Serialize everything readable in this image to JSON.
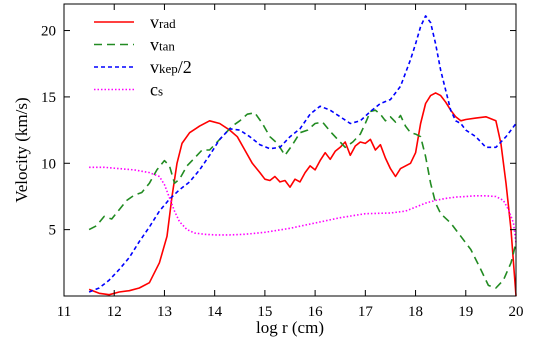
{
  "chart_data": {
    "type": "line",
    "xlabel": "log r (cm)",
    "ylabel": "Velocity (km/s)",
    "xlim": [
      11,
      20
    ],
    "ylim": [
      0,
      22
    ],
    "x_ticks": [
      11,
      12,
      13,
      14,
      15,
      16,
      17,
      18,
      19,
      20
    ],
    "y_ticks": [
      5,
      10,
      15,
      20
    ],
    "grid": false,
    "legend_position": "top-left",
    "series": [
      {
        "name": "v_rad",
        "legend": {
          "base": "v",
          "sub": "rad",
          "suffix": ""
        },
        "color": "#ff0000",
        "dash": "solid",
        "x": [
          11.5,
          11.7,
          11.9,
          12.1,
          12.3,
          12.5,
          12.7,
          12.9,
          13.05,
          13.15,
          13.25,
          13.35,
          13.5,
          13.7,
          13.9,
          14.1,
          14.3,
          14.45,
          14.6,
          14.75,
          14.9,
          15.0,
          15.1,
          15.2,
          15.3,
          15.4,
          15.5,
          15.6,
          15.7,
          15.8,
          15.9,
          16.0,
          16.1,
          16.2,
          16.3,
          16.4,
          16.5,
          16.6,
          16.7,
          16.8,
          16.9,
          17.0,
          17.1,
          17.2,
          17.3,
          17.4,
          17.5,
          17.6,
          17.7,
          17.8,
          17.9,
          18.0,
          18.1,
          18.2,
          18.3,
          18.4,
          18.5,
          18.6,
          18.7,
          18.8,
          18.9,
          19.0,
          19.2,
          19.4,
          19.6,
          19.7,
          19.8,
          19.9,
          20.0
        ],
        "y": [
          0.5,
          0.2,
          0.1,
          0.3,
          0.4,
          0.6,
          1.0,
          2.5,
          4.5,
          7.5,
          10.0,
          11.5,
          12.3,
          12.8,
          13.2,
          13.0,
          12.5,
          12.0,
          11.0,
          10.0,
          9.3,
          8.8,
          8.7,
          9.0,
          8.6,
          8.7,
          8.2,
          8.8,
          8.6,
          9.3,
          9.8,
          9.5,
          10.2,
          10.8,
          10.3,
          10.9,
          11.2,
          11.6,
          10.6,
          11.3,
          11.6,
          11.5,
          11.8,
          11.0,
          11.4,
          10.4,
          9.6,
          9.0,
          9.6,
          9.8,
          10.0,
          10.8,
          13.0,
          14.5,
          15.1,
          15.3,
          15.1,
          14.6,
          14.0,
          13.5,
          13.2,
          13.3,
          13.4,
          13.5,
          13.2,
          11.5,
          8.5,
          5.0,
          0.0
        ]
      },
      {
        "name": "v_tan",
        "legend": {
          "base": "v",
          "sub": "tan",
          "suffix": ""
        },
        "color": "#228b22",
        "dash": "8,5",
        "x": [
          11.5,
          11.65,
          11.8,
          11.95,
          12.1,
          12.25,
          12.4,
          12.55,
          12.7,
          12.85,
          13.0,
          13.1,
          13.2,
          13.3,
          13.45,
          13.6,
          13.75,
          13.9,
          14.05,
          14.2,
          14.35,
          14.5,
          14.65,
          14.8,
          14.95,
          15.1,
          15.25,
          15.4,
          15.55,
          15.7,
          15.85,
          16.0,
          16.15,
          16.3,
          16.45,
          16.6,
          16.75,
          16.9,
          17.0,
          17.1,
          17.2,
          17.3,
          17.4,
          17.5,
          17.6,
          17.7,
          17.8,
          17.9,
          18.0,
          18.1,
          18.2,
          18.3,
          18.4,
          18.5,
          18.7,
          18.9,
          19.1,
          19.3,
          19.45,
          19.6,
          19.75,
          19.9,
          20.0
        ],
        "y": [
          5.0,
          5.3,
          6.0,
          5.8,
          6.5,
          7.2,
          7.6,
          7.8,
          8.5,
          9.5,
          10.2,
          9.8,
          8.5,
          8.8,
          9.8,
          10.4,
          11.0,
          11.0,
          11.6,
          12.2,
          12.8,
          13.2,
          13.7,
          13.8,
          13.0,
          12.0,
          11.5,
          10.6,
          11.4,
          12.3,
          12.5,
          13.0,
          13.1,
          12.4,
          11.8,
          11.2,
          11.6,
          12.2,
          13.0,
          13.9,
          14.0,
          13.7,
          13.2,
          13.5,
          13.1,
          13.6,
          12.8,
          12.3,
          12.2,
          12.0,
          10.5,
          8.5,
          7.0,
          6.2,
          5.5,
          4.5,
          3.5,
          2.0,
          0.8,
          0.6,
          1.2,
          2.5,
          4.0
        ]
      },
      {
        "name": "v_kep/2",
        "legend": {
          "base": "v",
          "sub": "kep",
          "suffix": "/2"
        },
        "color": "#0000ff",
        "dash": "4,3",
        "x": [
          11.5,
          11.7,
          11.9,
          12.1,
          12.3,
          12.5,
          12.7,
          12.9,
          13.1,
          13.3,
          13.5,
          13.7,
          13.9,
          14.1,
          14.3,
          14.5,
          14.7,
          14.9,
          15.1,
          15.3,
          15.5,
          15.7,
          15.9,
          16.1,
          16.3,
          16.5,
          16.7,
          16.9,
          17.1,
          17.3,
          17.5,
          17.7,
          17.9,
          18.0,
          18.1,
          18.2,
          18.3,
          18.4,
          18.5,
          18.6,
          18.7,
          18.8,
          18.9,
          19.0,
          19.2,
          19.4,
          19.6,
          19.8,
          20.0
        ],
        "y": [
          0.3,
          0.6,
          1.2,
          2.0,
          2.9,
          4.1,
          5.2,
          6.4,
          7.3,
          8.0,
          8.6,
          9.5,
          10.6,
          11.8,
          12.6,
          12.5,
          12.0,
          11.4,
          11.1,
          11.2,
          12.0,
          12.6,
          13.7,
          14.3,
          14.0,
          13.5,
          13.0,
          13.2,
          13.9,
          14.5,
          14.8,
          15.8,
          17.8,
          19.0,
          20.3,
          21.1,
          20.6,
          19.0,
          17.0,
          15.5,
          14.0,
          13.2,
          13.0,
          12.5,
          12.0,
          11.2,
          11.2,
          12.0,
          13.0
        ]
      },
      {
        "name": "c_s",
        "legend": {
          "base": "c",
          "sub": "s",
          "suffix": ""
        },
        "color": "#ff00ff",
        "dash": "1.5,2",
        "x": [
          11.5,
          11.8,
          12.1,
          12.4,
          12.7,
          12.9,
          13.0,
          13.1,
          13.2,
          13.3,
          13.45,
          13.6,
          13.8,
          14.0,
          14.3,
          14.6,
          15.0,
          15.5,
          16.0,
          16.5,
          17.0,
          17.5,
          17.8,
          18.0,
          18.2,
          18.4,
          18.6,
          18.8,
          19.0,
          19.2,
          19.4,
          19.6,
          19.75,
          19.85,
          19.95,
          20.0
        ],
        "y": [
          9.7,
          9.7,
          9.6,
          9.5,
          9.3,
          9.0,
          8.4,
          7.4,
          6.4,
          5.6,
          5.0,
          4.75,
          4.65,
          4.6,
          4.6,
          4.65,
          4.8,
          5.1,
          5.5,
          5.9,
          6.2,
          6.25,
          6.4,
          6.7,
          7.0,
          7.2,
          7.35,
          7.45,
          7.5,
          7.55,
          7.55,
          7.5,
          7.2,
          6.5,
          5.5,
          4.0
        ]
      }
    ]
  }
}
